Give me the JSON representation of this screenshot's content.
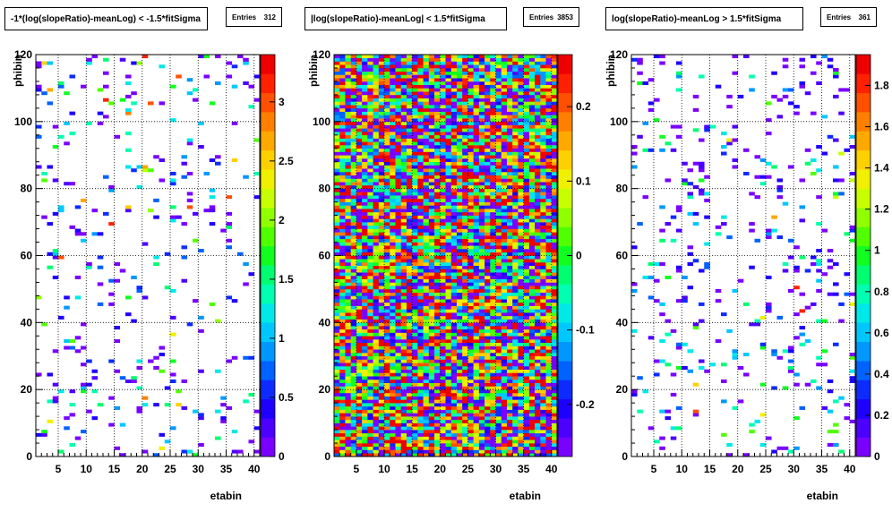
{
  "chart_data": [
    {
      "type": "heatmap",
      "title": "-1*(log(slopeRatio)-meanLog) < -1.5*fitSigma",
      "stats": {
        "label": "Entries",
        "value": "312"
      },
      "xlabel": "etabin",
      "ylabel": "phibin",
      "xlim": [
        1,
        41
      ],
      "ylim": [
        0,
        120
      ],
      "x_ticks": [
        "5",
        "10",
        "15",
        "20",
        "25",
        "30",
        "35",
        "40"
      ],
      "y_ticks": [
        "0",
        "20",
        "40",
        "60",
        "80",
        "100",
        "120"
      ],
      "z_range": [
        0,
        3.4
      ],
      "colorbar_ticks": [
        "0",
        "0.5",
        "1",
        "1.5",
        "2",
        "2.5",
        "3"
      ],
      "fill": "sparse",
      "entries": 312,
      "grid": true
    },
    {
      "type": "heatmap",
      "title": "|log(slopeRatio)-meanLog| < 1.5*fitSigma",
      "stats": {
        "label": "Entries",
        "value": "3853"
      },
      "xlabel": "etabin",
      "ylabel": "phibin",
      "xlim": [
        1,
        41
      ],
      "ylim": [
        0,
        120
      ],
      "x_ticks": [
        "5",
        "10",
        "15",
        "20",
        "25",
        "30",
        "35",
        "40"
      ],
      "y_ticks": [
        "0",
        "20",
        "40",
        "60",
        "80",
        "100",
        "120"
      ],
      "z_range": [
        -0.27,
        0.27
      ],
      "colorbar_ticks": [
        "-0.2",
        "-0.1",
        "0",
        "0.1",
        "0.2"
      ],
      "fill": "dense",
      "entries": 3853,
      "grid": true
    },
    {
      "type": "heatmap",
      "title": "log(slopeRatio)-meanLog > 1.5*fitSigma",
      "stats": {
        "label": "Entries",
        "value": "361"
      },
      "xlabel": "etabin",
      "ylabel": "phibin",
      "xlim": [
        1,
        41
      ],
      "ylim": [
        0,
        120
      ],
      "x_ticks": [
        "5",
        "10",
        "15",
        "20",
        "25",
        "30",
        "35",
        "40"
      ],
      "y_ticks": [
        "0",
        "20",
        "40",
        "60",
        "80",
        "100",
        "120"
      ],
      "z_range": [
        0,
        1.95
      ],
      "colorbar_ticks": [
        "0",
        "0.2",
        "0.4",
        "0.6",
        "0.8",
        "1",
        "1.2",
        "1.4",
        "1.6",
        "1.8"
      ],
      "fill": "sparse",
      "entries": 361,
      "grid": true
    }
  ]
}
